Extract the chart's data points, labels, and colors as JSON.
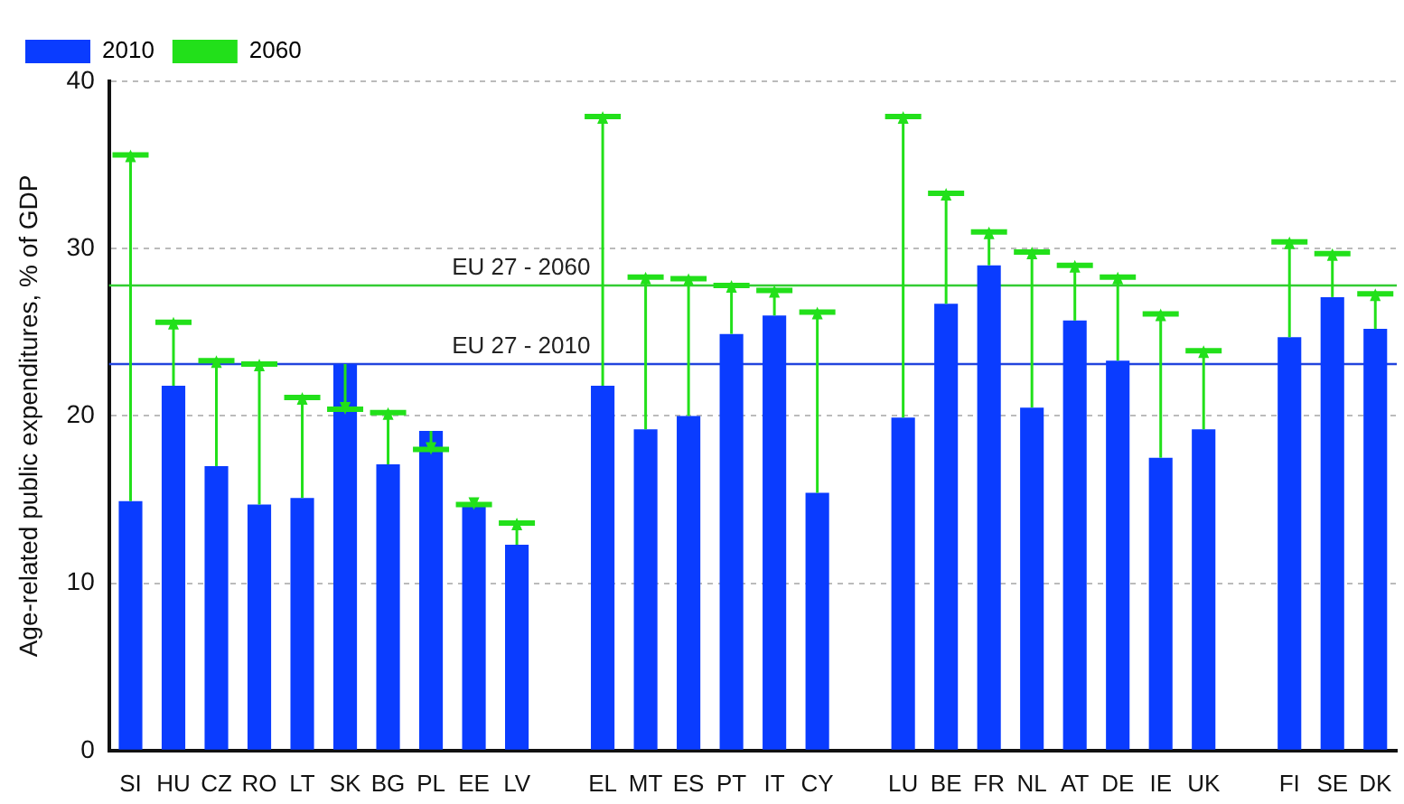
{
  "chart_data": {
    "type": "bar",
    "ylabel": "Age-related public expenditures, % of GDP",
    "categories": [
      "SI",
      "HU",
      "CZ",
      "RO",
      "LT",
      "SK",
      "BG",
      "PL",
      "EE",
      "LV",
      null,
      "EL",
      "MT",
      "ES",
      "PT",
      "IT",
      "CY",
      null,
      "LU",
      "BE",
      "FR",
      "NL",
      "AT",
      "DE",
      "IE",
      "UK",
      null,
      "FI",
      "SE",
      "DK"
    ],
    "series": [
      {
        "name": "2010",
        "color": "#0a3cff",
        "values": [
          14.9,
          21.8,
          17.0,
          14.7,
          15.1,
          23.1,
          17.1,
          19.1,
          14.7,
          12.3,
          null,
          21.8,
          19.2,
          20.0,
          24.9,
          26.0,
          15.4,
          null,
          19.9,
          26.7,
          29.0,
          20.5,
          25.7,
          23.3,
          17.5,
          19.2,
          null,
          24.7,
          27.1,
          25.2
        ]
      },
      {
        "name": "2060",
        "color": "#22e01a",
        "type": "scatter",
        "marker": "triangle",
        "values": [
          35.6,
          25.6,
          23.3,
          23.1,
          21.1,
          20.4,
          20.2,
          18.0,
          14.7,
          13.6,
          null,
          37.9,
          28.3,
          28.2,
          27.8,
          27.5,
          26.2,
          null,
          37.9,
          33.3,
          31.0,
          29.8,
          29.0,
          28.3,
          26.1,
          23.9,
          null,
          30.4,
          29.7,
          27.3
        ],
        "errors": [
          [
            14.9,
            35.6
          ],
          [
            21.8,
            25.6
          ],
          [
            17.0,
            23.3
          ],
          [
            14.7,
            23.1
          ],
          [
            15.1,
            21.1
          ],
          [
            20.4,
            23.1
          ],
          [
            17.1,
            20.2
          ],
          [
            18.0,
            19.1
          ],
          [
            14.7,
            14.7
          ],
          [
            12.3,
            13.6
          ],
          null,
          [
            21.8,
            37.9
          ],
          [
            19.2,
            28.3
          ],
          [
            20.0,
            28.2
          ],
          [
            24.9,
            27.8
          ],
          [
            26.0,
            27.5
          ],
          [
            15.4,
            26.2
          ],
          null,
          [
            19.9,
            37.9
          ],
          [
            26.7,
            33.3
          ],
          [
            29.0,
            31.0
          ],
          [
            20.5,
            29.8
          ],
          [
            25.7,
            29.0
          ],
          [
            23.3,
            28.3
          ],
          [
            17.5,
            26.1
          ],
          [
            19.2,
            23.9
          ],
          null,
          [
            24.7,
            30.4
          ],
          [
            27.1,
            29.7
          ],
          [
            25.2,
            27.3
          ]
        ]
      }
    ],
    "ylim": [
      0,
      40
    ],
    "yticks": [
      0,
      10,
      20,
      30,
      40
    ],
    "grid": "y",
    "legend": "top left",
    "ref_lines": [
      {
        "axis": "y",
        "value": 27.8,
        "label": "EU 27 - 2060",
        "color": "#33cc33"
      },
      {
        "axis": "y",
        "value": 23.1,
        "label": "EU 27 - 2010",
        "color": "#2244dd"
      }
    ]
  }
}
